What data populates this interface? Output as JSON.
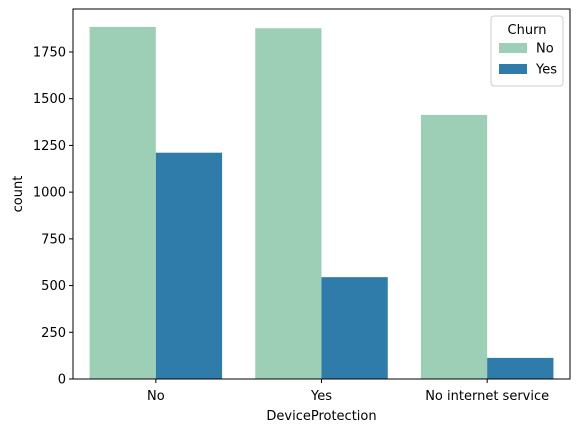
{
  "chart_data": {
    "type": "bar",
    "xlabel": "DeviceProtection",
    "ylabel": "count",
    "categories": [
      "No",
      "Yes",
      "No internet service"
    ],
    "series": [
      {
        "name": "No",
        "color": "#9dcfb6",
        "values": [
          1884,
          1877,
          1413
        ]
      },
      {
        "name": "Yes",
        "color": "#2f7ba9",
        "values": [
          1211,
          545,
          113
        ]
      }
    ],
    "ylim": [
      0,
      1980
    ],
    "yticks": [
      0,
      250,
      500,
      750,
      1000,
      1250,
      1500,
      1750
    ],
    "legend": {
      "title": "Churn",
      "position": "top-right"
    },
    "grid": false
  }
}
